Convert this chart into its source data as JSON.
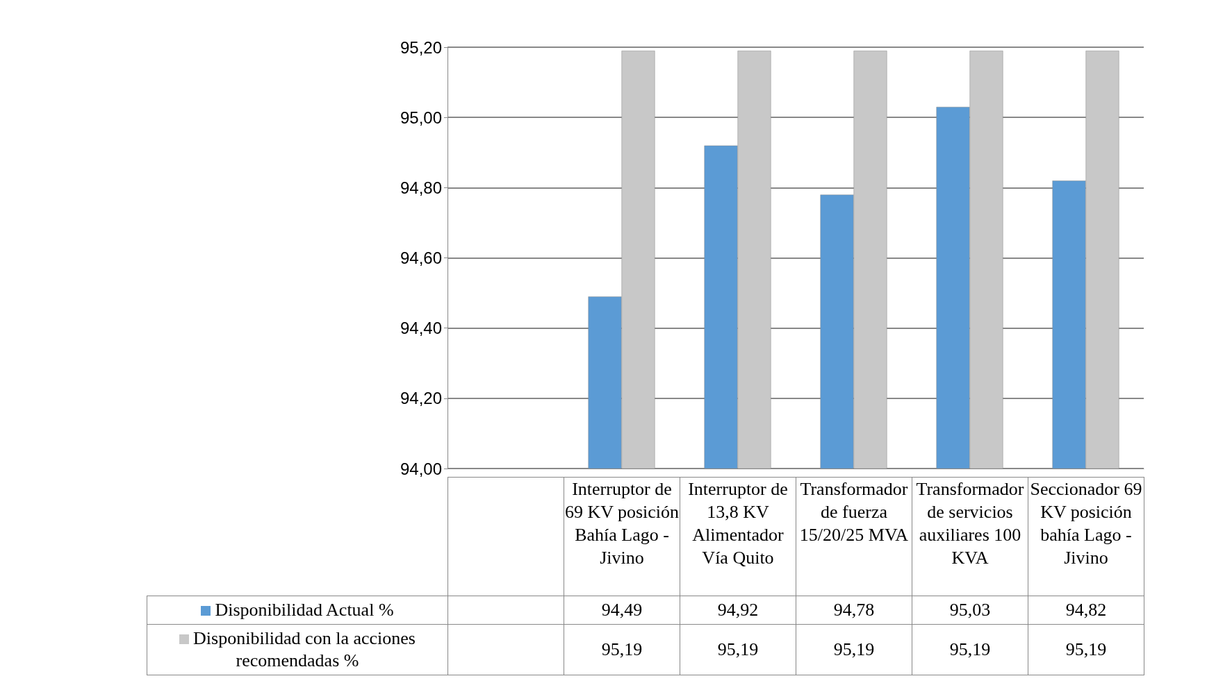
{
  "chart_data": {
    "type": "bar",
    "categories": [
      null,
      "Interruptor de 69 KV posición Bahía Lago - Jivino",
      "Interruptor de 13,8 KV Alimentador Vía Quito",
      "Transformador de fuerza 15/20/25 MVA",
      "Transformador de servicios auxiliares 100 KVA",
      "Seccionador 69 KV posición bahía Lago - Jivino"
    ],
    "series": [
      {
        "name": "Disponibilidad Actual %",
        "color": "#5b9bd5",
        "values": [
          null,
          94.49,
          94.92,
          94.78,
          95.03,
          94.82
        ],
        "value_labels": [
          null,
          "94,49",
          "94,92",
          "94,78",
          "95,03",
          "94,82"
        ]
      },
      {
        "name": "Disponibilidad con la acciones recomendadas %",
        "color": "#c8c8c8",
        "values": [
          null,
          95.19,
          95.19,
          95.19,
          95.19,
          95.19
        ],
        "value_labels": [
          null,
          "95,19",
          "95,19",
          "95,19",
          "95,19",
          "95,19"
        ]
      }
    ],
    "ylim": [
      94,
      95.2
    ],
    "yticks": [
      {
        "value": 94,
        "label": "94,00"
      },
      {
        "value": 94.2,
        "label": "94,20"
      },
      {
        "value": 94.4,
        "label": "94,40"
      },
      {
        "value": 94.6,
        "label": "94,60"
      },
      {
        "value": 94.8,
        "label": "94,80"
      },
      {
        "value": 95,
        "label": "95,00"
      },
      {
        "value": 95.2,
        "label": "95,20"
      }
    ],
    "grid": "y",
    "legend": "bottom"
  }
}
